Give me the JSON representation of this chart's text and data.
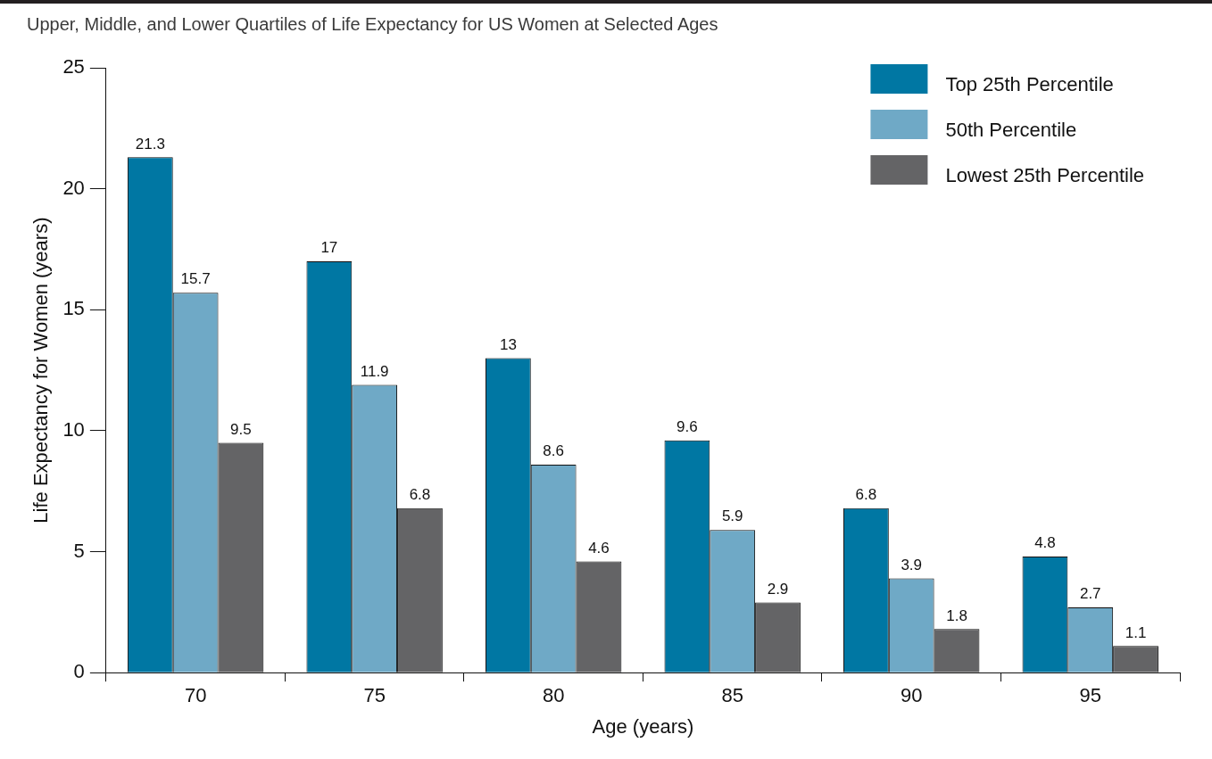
{
  "chart_data": {
    "type": "bar",
    "title": "Upper, Middle, and Lower Quartiles of Life Expectancy for US Women at Selected Ages",
    "xlabel": "Age (years)",
    "ylabel": "Life Expectancy for Women (years)",
    "categories": [
      "70",
      "75",
      "80",
      "85",
      "90",
      "95"
    ],
    "series": [
      {
        "name": "Top 25th Percentile",
        "color": "#0077a3",
        "values": [
          21.3,
          17,
          13,
          9.6,
          6.8,
          4.8
        ]
      },
      {
        "name": "50th Percentile",
        "color": "#6fa9c6",
        "values": [
          15.7,
          11.9,
          8.6,
          5.9,
          3.9,
          2.7
        ]
      },
      {
        "name": "Lowest 25th Percentile",
        "color": "#646466",
        "values": [
          9.5,
          6.8,
          4.6,
          2.9,
          1.8,
          1.1
        ]
      }
    ],
    "ylim": [
      0,
      25
    ],
    "yticks": [
      0,
      5,
      10,
      15,
      20,
      25
    ],
    "grid": false,
    "legend": "top right",
    "data_labels": true
  }
}
